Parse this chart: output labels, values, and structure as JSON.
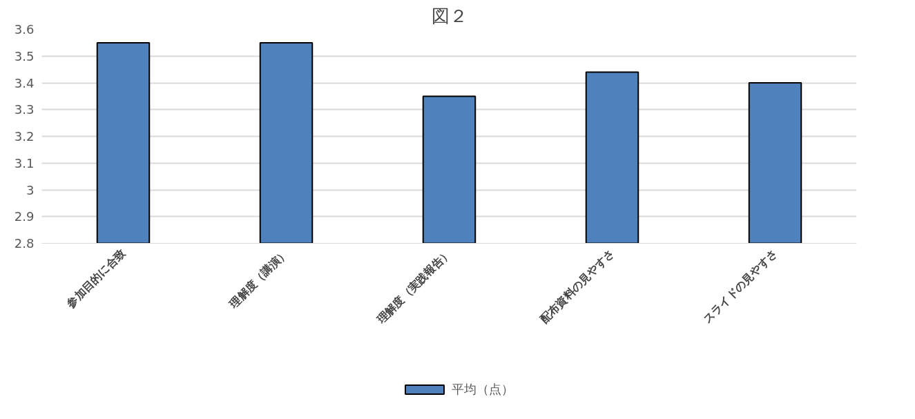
{
  "chart_data": {
    "type": "bar",
    "title": "図２",
    "categories": [
      "参加目的に合致",
      "理解度（講演）",
      "理解度（実践報告）",
      "配布資料の見やすさ",
      "スライドの見やすさ"
    ],
    "series": [
      {
        "name": "平均（点）",
        "color": "#4f81bd",
        "values": [
          3.55,
          3.55,
          3.35,
          3.44,
          3.4
        ]
      }
    ],
    "ylim": [
      2.8,
      3.6
    ],
    "yticks": [
      2.8,
      2.9,
      3,
      3.1,
      3.2,
      3.3,
      3.4,
      3.5,
      3.6
    ],
    "grid": "y",
    "legend": "bottom"
  }
}
